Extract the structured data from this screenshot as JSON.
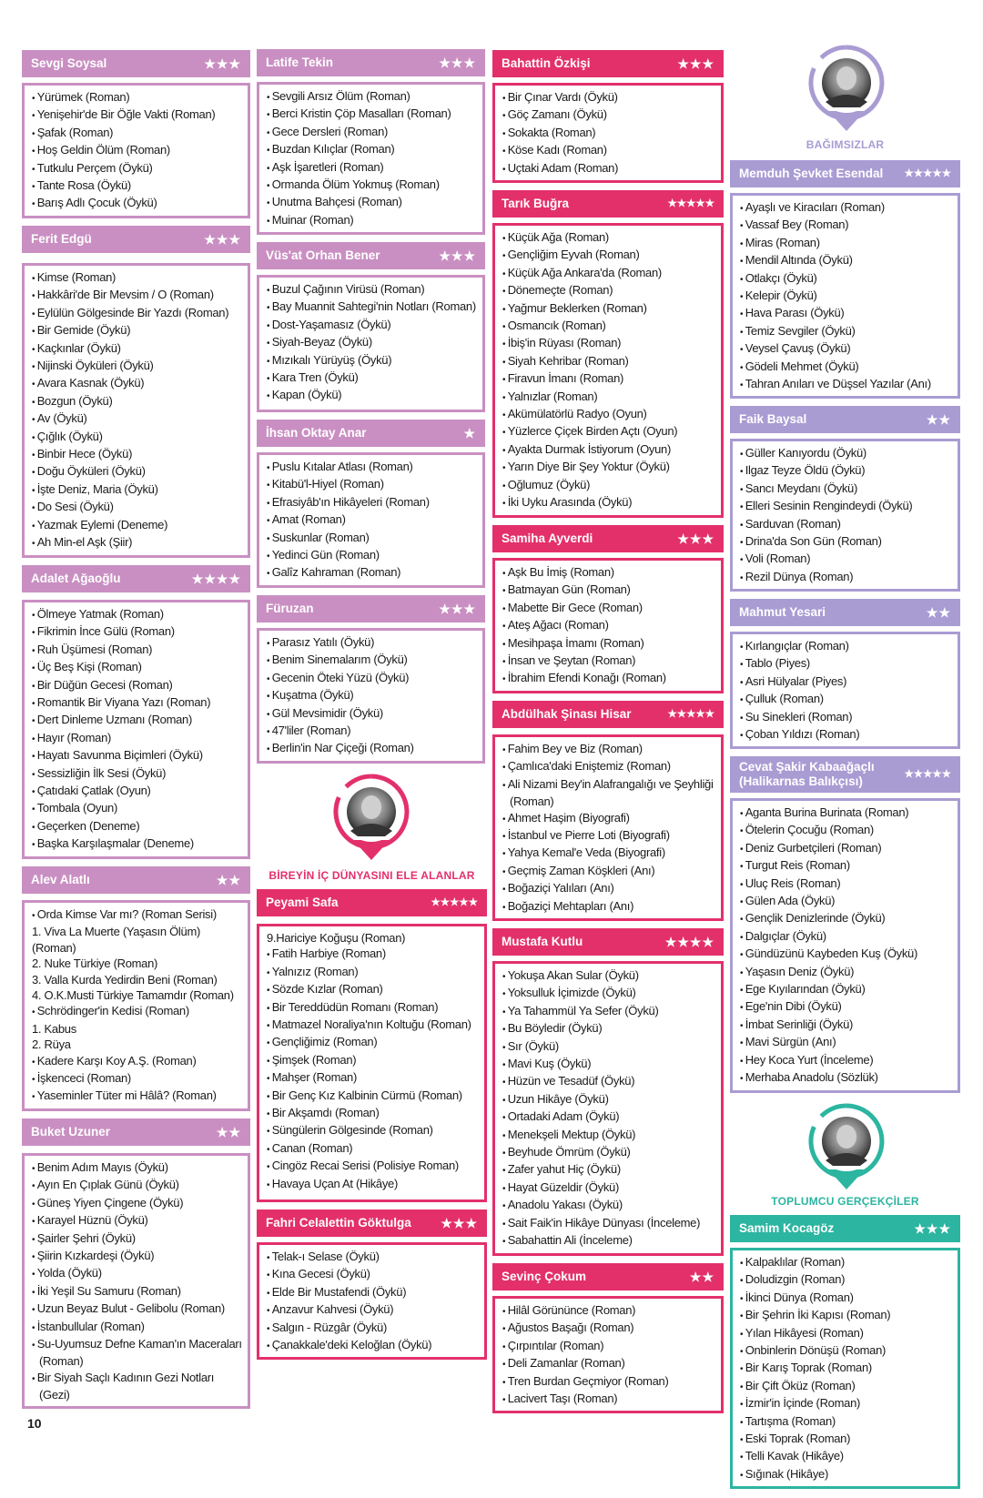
{
  "colors": {
    "pink": "#c98fc2",
    "magenta": "#e3306b",
    "lavender": "#a99cd3",
    "teal": "#2cb5a0"
  },
  "groups": [
    {
      "label": "BAĞIMSIZLAR",
      "theme": "lavender",
      "portrait": "portrait-icon"
    },
    {
      "label": "BİREYİN İÇ DÜNYASINI ELE ALANLAR",
      "theme": "magenta",
      "portrait": "portrait-icon"
    },
    {
      "label": "TOPLUMCU GERÇEKÇİLER",
      "theme": "teal",
      "portrait": "portrait-icon"
    }
  ],
  "page_number": "10",
  "sections": [
    {
      "author": "Sevgi Soysal",
      "stars": 3,
      "theme": "pink",
      "works": [
        "Yürümek (Roman)",
        "Yenişehir'de Bir Öğle Vakti (Roman)",
        "Şafak (Roman)",
        "Hoş Geldin Ölüm (Roman)",
        "Tutkulu Perçem (Öykü)",
        "Tante Rosa (Öykü)",
        "Barış Adlı Çocuk (Öykü)"
      ]
    },
    {
      "author": "Ferit Edgü",
      "stars": 3,
      "theme": "pink",
      "works": [
        "Kimse (Roman)",
        "Hakkâri'de Bir Mevsim / O (Roman)",
        "Eylülün Gölgesinde Bir Yazdı (Roman)",
        "Bir Gemide (Öykü)",
        "Kaçkınlar (Öykü)",
        "Nijinski Öyküleri (Öykü)",
        "Avara Kasnak (Öykü)",
        "Bozgun (Öykü)",
        "Av (Öykü)",
        "Çığlık (Öykü)",
        "Binbir Hece (Öykü)",
        "Doğu Öyküleri (Öykü)",
        "İşte Deniz, Maria (Öykü)",
        "Do Sesi (Öykü)",
        "Yazmak Eylemi (Deneme)",
        "Ah Min-el Aşk (Şiir)"
      ]
    },
    {
      "author": "Adalet Ağaoğlu",
      "stars": 4,
      "theme": "pink",
      "works": [
        "Ölmeye Yatmak (Roman)",
        "Fikrimin İnce Gülü (Roman)",
        "Ruh Üşümesi (Roman)",
        "Üç Beş Kişi (Roman)",
        "Bir Düğün Gecesi (Roman)",
        "Romantik Bir Viyana Yazı (Roman)",
        "Dert Dinleme Uzmanı (Roman)",
        "Hayır (Roman)",
        "Hayatı Savunma Biçimleri (Öykü)",
        "Sessizliğin İlk Sesi (Öykü)",
        "Çatıdaki Çatlak (Oyun)",
        "Tombala (Oyun)",
        "Geçerken (Deneme)",
        "Başka Karşılaşmalar (Deneme)"
      ]
    },
    {
      "author": "Alev Alatlı",
      "stars": 2,
      "theme": "pink",
      "works": [
        "Orda Kimse Var mı? (Roman Serisi)",
        "1. Viva La Muerte (Yaşasın Ölüm) (Roman)",
        "2. Nuke Türkiye (Roman)",
        "3. Valla Kurda Yedirdin Beni (Roman)",
        "4. O.K.Musti Türkiye Tamamdır (Roman)",
        "Schrödinger'in Kedisi (Roman)",
        "1. Kabus",
        "2. Rüya",
        "Kadere Karşı Koy A.Ş. (Roman)",
        "İşkenceci (Roman)",
        "Yaseminler Tüter mi Hâlâ? (Roman)"
      ]
    },
    {
      "author": "Buket Uzuner",
      "stars": 2,
      "theme": "pink",
      "works": [
        "Benim Adım Mayıs (Öykü)",
        "Ayın En Çıplak Günü (Öykü)",
        "Güneş Yiyen Çingene (Öykü)",
        "Karayel Hüznü (Öykü)",
        "Şairler Şehri (Öykü)",
        "Şiirin Kızkardeşi (Öykü)",
        "Yolda (Öykü)",
        "İki Yeşil Su Samuru (Roman)",
        "Uzun Beyaz Bulut - Gelibolu (Roman)",
        "İstanbullular (Roman)",
        "Su-Uyumsuz Defne Kaman'ın Maceraları (Roman)",
        "Bir Siyah Saçlı Kadının Gezi Notları (Gezi)"
      ]
    },
    {
      "author": "Latife Tekin",
      "stars": 3,
      "theme": "pink",
      "works": [
        "Sevgili Arsız Ölüm (Roman)",
        "Berci Kristin Çöp Masalları (Roman)",
        "Gece Dersleri (Roman)",
        "Buzdan Kılıçlar (Roman)",
        "Aşk İşaretleri (Roman)",
        "Ormanda Ölüm Yokmuş (Roman)",
        "Unutma Bahçesi (Roman)",
        "Muinar (Roman)"
      ]
    },
    {
      "author": "Vüs'at Orhan Bener",
      "stars": 3,
      "theme": "pink",
      "works": [
        "Buzul Çağının Virüsü (Roman)",
        "Bay Muannit Sahtegi'nin Notları (Roman)",
        "Dost-Yaşamasız (Öykü)",
        "Siyah-Beyaz (Öykü)",
        "Mızıkalı Yürüyüş (Öykü)",
        "Kara Tren (Öykü)",
        "Kapan (Öykü)"
      ]
    },
    {
      "author": "İhsan Oktay Anar",
      "stars": 1,
      "theme": "pink",
      "works": [
        "Puslu Kıtalar Atlası (Roman)",
        "Kitabü'l-Hiyel (Roman)",
        "Efrasiyâb'ın Hikâyeleri (Roman)",
        "Amat (Roman)",
        "Suskunlar (Roman)",
        "Yedinci Gün (Roman)",
        "Galîz Kahraman (Roman)"
      ]
    },
    {
      "author": "Füruzan",
      "stars": 3,
      "theme": "pink",
      "works": [
        "Parasız Yatılı (Öykü)",
        "Benim Sinemalarım (Öykü)",
        "Gecenin Öteki Yüzü (Öykü)",
        "Kuşatma (Öykü)",
        "Gül Mevsimidir (Öykü)",
        "47'liler (Roman)",
        "Berlin'in Nar Çiçeği (Roman)"
      ]
    },
    {
      "author": "Peyami Safa",
      "stars": 5,
      "theme": "magenta",
      "works": [
        "9.Hariciye Koğuşu (Roman)",
        "Fatih Harbiye (Roman)",
        "Yalnızız (Roman)",
        "Sözde Kızlar (Roman)",
        "Bir Tereddüdün Romanı (Roman)",
        "Matmazel Noraliya'nın Koltuğu (Roman)",
        "Gençliğimiz (Roman)",
        "Şimşek (Roman)",
        "Mahşer (Roman)",
        "Bir Genç Kız Kalbinin Cürmü (Roman)",
        "Bir Akşamdı (Roman)",
        "Süngülerin Gölgesinde (Roman)",
        "Canan (Roman)",
        "Cingöz Recai Serisi (Polisiye Roman)",
        "Havaya Uçan At (Hikâye)"
      ]
    },
    {
      "author": "Fahri Celalettin Göktulga",
      "stars": 3,
      "theme": "magenta",
      "works": [
        "Telak-ı Selase (Öykü)",
        "Kına Gecesi (Öykü)",
        "Elde Bir Mustafendi (Öykü)",
        "Anzavur Kahvesi (Öykü)",
        "Salgın - Rüzgâr (Öykü)",
        "Çanakkale'deki Keloğlan (Öykü)"
      ]
    },
    {
      "author": "Bahattin Özkişi",
      "stars": 3,
      "theme": "magenta",
      "works": [
        "Bir Çınar Vardı (Öykü)",
        "Göç Zamanı (Öykü)",
        "Sokakta (Roman)",
        "Köse Kadı (Roman)",
        "Uçtaki Adam (Roman)"
      ]
    },
    {
      "author": "Tarık Buğra",
      "stars": 5,
      "theme": "magenta",
      "works": [
        "Küçük Ağa (Roman)",
        "Gençliğim Eyvah (Roman)",
        "Küçük Ağa Ankara'da (Roman)",
        "Dönemeçte (Roman)",
        "Yağmur Beklerken (Roman)",
        "Osmancık (Roman)",
        "İbiş'in Rüyası (Roman)",
        "Siyah Kehribar (Roman)",
        "Firavun İmanı (Roman)",
        "Yalnızlar (Roman)",
        "Akümülatörlü Radyo (Oyun)",
        "Yüzlerce Çiçek Birden Açtı (Oyun)",
        "Ayakta Durmak İstiyorum (Oyun)",
        "Yarın Diye Bir Şey Yoktur (Öykü)",
        "Oğlumuz (Öykü)",
        "İki Uyku Arasında (Öykü)"
      ]
    },
    {
      "author": "Samiha Ayverdi",
      "stars": 3,
      "theme": "magenta",
      "works": [
        "Aşk Bu İmiş (Roman)",
        "Batmayan Gün (Roman)",
        "Mabette Bir Gece (Roman)",
        "Ateş Ağacı (Roman)",
        "Mesihpaşa İmamı (Roman)",
        "İnsan ve Şeytan (Roman)",
        "İbrahim Efendi Konağı (Roman)"
      ]
    },
    {
      "author": "Abdülhak Şinası Hisar",
      "stars": 5,
      "theme": "magenta",
      "works": [
        "Fahim Bey ve Biz (Roman)",
        "Çamlıca'daki Eniştemiz (Roman)",
        "Ali Nizami Bey'in Alafrangalığı ve Şeyhliği (Roman)",
        "Ahmet Haşim (Biyografi)",
        "İstanbul ve Pierre Loti (Biyografi)",
        "Yahya Kemal'e Veda (Biyografi)",
        "Geçmiş Zaman Köşkleri (Anı)",
        "Boğaziçi Yalıları (Anı)",
        "Boğaziçi Mehtapları (Anı)"
      ]
    },
    {
      "author": "Mustafa Kutlu",
      "stars": 4,
      "theme": "magenta",
      "works": [
        "Yokuşa Akan Sular (Öykü)",
        "Yoksulluk İçimizde (Öykü)",
        "Ya Tahammül Ya Sefer (Öykü)",
        "Bu Böyledir (Öykü)",
        "Sır (Öykü)",
        "Mavi Kuş (Öykü)",
        "Hüzün ve Tesadüf (Öykü)",
        "Uzun Hikâye (Öykü)",
        "Ortadaki Adam (Öykü)",
        "Menekşeli Mektup (Öykü)",
        "Beyhude Ömrüm (Öykü)",
        "Zafer yahut Hiç (Öykü)",
        "Hayat Güzeldir (Öykü)",
        "Anadolu Yakası (Öykü)",
        "Sait Faik'in Hikâye Dünyası (İnceleme)",
        "Sabahattin Ali (İnceleme)"
      ]
    },
    {
      "author": "Sevinç Çokum",
      "stars": 2,
      "theme": "magenta",
      "works": [
        "Hilâl Görününce (Roman)",
        "Ağustos Başağı (Roman)",
        "Çırpıntılar (Roman)",
        "Deli Zamanlar (Roman)",
        "Tren Burdan Geçmiyor (Roman)",
        "Lacivert Taşı (Roman)"
      ]
    },
    {
      "author": "Memduh Şevket Esendal",
      "stars": 5,
      "theme": "lavender",
      "works": [
        "Ayaşlı ve Kiracıları (Roman)",
        "Vassaf Bey (Roman)",
        "Miras (Roman)",
        "Mendil Altında (Öykü)",
        "Otlakçı (Öykü)",
        "Kelepir (Öykü)",
        "Hava Parası (Öykü)",
        "Temiz Sevgiler (Öykü)",
        "Veysel Çavuş (Öykü)",
        "Gödeli Mehmet (Öykü)",
        "Tahran Anıları ve Düşsel Yazılar (Anı)"
      ]
    },
    {
      "author": "Faik Baysal",
      "stars": 2,
      "theme": "lavender",
      "works": [
        "Güller Kanıyordu (Öykü)",
        "Ilgaz Teyze Öldü (Öykü)",
        "Sancı Meydanı (Öykü)",
        "Elleri Sesinin Rengindeydi (Öykü)",
        "Sarduvan (Roman)",
        "Drina'da Son Gün (Roman)",
        "Voli (Roman)",
        "Rezil Dünya (Roman)"
      ]
    },
    {
      "author": "Mahmut Yesari",
      "stars": 2,
      "theme": "lavender",
      "works": [
        "Kırlangıçlar (Roman)",
        "Tablo (Piyes)",
        "Asri Hülyalar (Piyes)",
        "Çulluk (Roman)",
        "Su Sinekleri (Roman)",
        "Çoban Yıldızı (Roman)"
      ]
    },
    {
      "author": "Cevat Şakir Kabaağaçlı (Halikarnas Balıkçısı)",
      "stars": 5,
      "theme": "lavender",
      "works": [
        "Aganta Burina Burinata (Roman)",
        "Ötelerin Çocuğu (Roman)",
        "Deniz Gurbetçileri (Roman)",
        "Turgut Reis (Roman)",
        "Uluç Reis (Roman)",
        "Gülen Ada (Öykü)",
        "Gençlik Denizlerinde (Öykü)",
        "Dalgıçlar (Öykü)",
        "Gündüzünü Kaybeden Kuş (Öykü)",
        "Yaşasın Deniz (Öykü)",
        "Ege Kıyılarından (Öykü)",
        "Ege'nin Dibi (Öykü)",
        "İmbat Serinliği (Öykü)",
        "Mavi Sürgün (Anı)",
        "Hey Koca Yurt (İnceleme)",
        "Merhaba Anadolu (Sözlük)"
      ]
    },
    {
      "author": "Samim Kocagöz",
      "stars": 3,
      "theme": "teal",
      "works": [
        "Kalpaklılar (Roman)",
        "Doludizgin (Roman)",
        "İkinci Dünya (Roman)",
        "Bir Şehrin İki Kapısı (Roman)",
        "Yılan Hikâyesi (Roman)",
        "Onbinlerin Dönüşü (Roman)",
        "Bir Karış Toprak (Roman)",
        "Bir Çift Öküz (Roman)",
        "İzmir'in İçinde (Roman)",
        "Tartışma (Roman)",
        "Eski Toprak (Roman)",
        "Telli Kavak (Hikâye)",
        "Sığınak (Hikâye)"
      ]
    }
  ]
}
